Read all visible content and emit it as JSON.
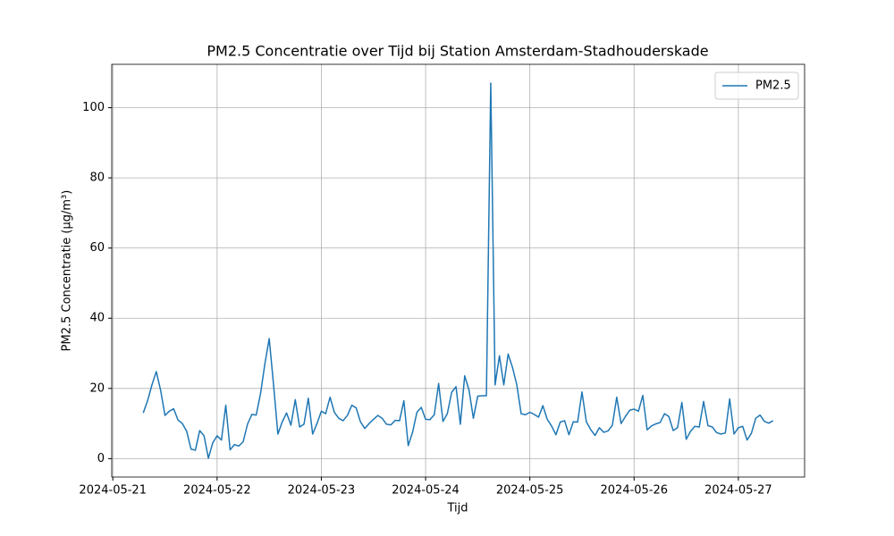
{
  "chart_data": {
    "type": "line",
    "title": "PM2.5 Concentratie over Tijd bij Station Amsterdam-Stadhouderskade",
    "x_label": "Tijd",
    "y_label": "PM2.5 Concentratie (µg/m³)",
    "x": [
      "2024-05-21 07:00",
      "2024-05-21 08:00",
      "2024-05-21 09:00",
      "2024-05-21 10:00",
      "2024-05-21 11:00",
      "2024-05-21 12:00",
      "2024-05-21 13:00",
      "2024-05-21 14:00",
      "2024-05-21 15:00",
      "2024-05-21 16:00",
      "2024-05-21 17:00",
      "2024-05-21 18:00",
      "2024-05-21 19:00",
      "2024-05-21 20:00",
      "2024-05-21 21:00",
      "2024-05-21 22:00",
      "2024-05-21 23:00",
      "2024-05-22 00:00",
      "2024-05-22 01:00",
      "2024-05-22 02:00",
      "2024-05-22 03:00",
      "2024-05-22 04:00",
      "2024-05-22 05:00",
      "2024-05-22 06:00",
      "2024-05-22 07:00",
      "2024-05-22 08:00",
      "2024-05-22 09:00",
      "2024-05-22 10:00",
      "2024-05-22 11:00",
      "2024-05-22 12:00",
      "2024-05-22 13:00",
      "2024-05-22 14:00",
      "2024-05-22 15:00",
      "2024-05-22 16:00",
      "2024-05-22 17:00",
      "2024-05-22 18:00",
      "2024-05-22 19:00",
      "2024-05-22 20:00",
      "2024-05-22 21:00",
      "2024-05-22 22:00",
      "2024-05-22 23:00",
      "2024-05-23 00:00",
      "2024-05-23 01:00",
      "2024-05-23 02:00",
      "2024-05-23 03:00",
      "2024-05-23 04:00",
      "2024-05-23 05:00",
      "2024-05-23 06:00",
      "2024-05-23 07:00",
      "2024-05-23 08:00",
      "2024-05-23 09:00",
      "2024-05-23 10:00",
      "2024-05-23 11:00",
      "2024-05-23 12:00",
      "2024-05-23 13:00",
      "2024-05-23 14:00",
      "2024-05-23 15:00",
      "2024-05-23 16:00",
      "2024-05-23 17:00",
      "2024-05-23 18:00",
      "2024-05-23 19:00",
      "2024-05-23 20:00",
      "2024-05-23 21:00",
      "2024-05-23 22:00",
      "2024-05-23 23:00",
      "2024-05-24 00:00",
      "2024-05-24 01:00",
      "2024-05-24 02:00",
      "2024-05-24 03:00",
      "2024-05-24 04:00",
      "2024-05-24 05:00",
      "2024-05-24 06:00",
      "2024-05-24 07:00",
      "2024-05-24 08:00",
      "2024-05-24 09:00",
      "2024-05-24 10:00",
      "2024-05-24 11:00",
      "2024-05-24 12:00",
      "2024-05-24 13:00",
      "2024-05-24 14:00",
      "2024-05-24 15:00",
      "2024-05-24 16:00",
      "2024-05-24 17:00",
      "2024-05-24 18:00",
      "2024-05-24 19:00",
      "2024-05-24 20:00",
      "2024-05-24 21:00",
      "2024-05-24 22:00",
      "2024-05-24 23:00",
      "2024-05-25 00:00",
      "2024-05-25 01:00",
      "2024-05-25 02:00",
      "2024-05-25 03:00",
      "2024-05-25 04:00",
      "2024-05-25 05:00",
      "2024-05-25 06:00",
      "2024-05-25 07:00",
      "2024-05-25 08:00",
      "2024-05-25 09:00",
      "2024-05-25 10:00",
      "2024-05-25 11:00",
      "2024-05-25 12:00",
      "2024-05-25 13:00",
      "2024-05-25 14:00",
      "2024-05-25 15:00",
      "2024-05-25 16:00",
      "2024-05-25 17:00",
      "2024-05-25 18:00",
      "2024-05-25 19:00",
      "2024-05-25 20:00",
      "2024-05-25 21:00",
      "2024-05-25 22:00",
      "2024-05-25 23:00",
      "2024-05-26 00:00",
      "2024-05-26 01:00",
      "2024-05-26 02:00",
      "2024-05-26 03:00",
      "2024-05-26 04:00",
      "2024-05-26 05:00",
      "2024-05-26 06:00",
      "2024-05-26 07:00",
      "2024-05-26 08:00",
      "2024-05-26 09:00",
      "2024-05-26 10:00",
      "2024-05-26 11:00",
      "2024-05-26 12:00",
      "2024-05-26 13:00",
      "2024-05-26 14:00",
      "2024-05-26 15:00",
      "2024-05-26 16:00",
      "2024-05-26 17:00",
      "2024-05-26 18:00",
      "2024-05-26 19:00",
      "2024-05-26 20:00",
      "2024-05-26 21:00",
      "2024-05-26 22:00",
      "2024-05-26 23:00",
      "2024-05-27 00:00",
      "2024-05-27 01:00",
      "2024-05-27 02:00",
      "2024-05-27 03:00",
      "2024-05-27 04:00",
      "2024-05-27 05:00",
      "2024-05-27 06:00",
      "2024-05-27 07:00",
      "2024-05-27 08:00"
    ],
    "series": [
      {
        "name": "PM2.5",
        "color": "#1f77b4",
        "values": [
          13,
          16.5,
          21,
          24.8,
          19.5,
          12.3,
          13.5,
          14.2,
          11,
          10,
          7.8,
          2.7,
          2.4,
          8,
          6.5,
          0.1,
          4.5,
          6.5,
          5.3,
          15.2,
          2.5,
          4,
          3.6,
          4.8,
          9.8,
          12.6,
          12.4,
          18.5,
          27,
          34.2,
          21,
          7,
          10.5,
          13,
          9.5,
          16.8,
          9,
          9.8,
          17.2,
          7,
          10,
          13.5,
          12.8,
          17.5,
          13.2,
          11.5,
          10.8,
          12.3,
          15.2,
          14.5,
          10.5,
          8.6,
          10,
          11.2,
          12.3,
          11.5,
          9.8,
          9.6,
          10.9,
          10.8,
          16.5,
          3.7,
          7.5,
          13.2,
          14.6,
          11.2,
          11.1,
          12.5,
          21.4,
          10.6,
          12.8,
          18.9,
          20.5,
          9.8,
          23.6,
          19.5,
          11.5,
          17.8,
          17.9,
          17.9,
          107,
          21,
          29.3,
          21,
          29.8,
          26,
          21,
          12.8,
          12.5,
          13.2,
          12.6,
          11.8,
          15.1,
          11.2,
          9.3,
          6.8,
          10.4,
          10.8,
          6.8,
          10.5,
          10.4,
          19,
          10.5,
          8.3,
          6.6,
          8.8,
          7.5,
          7.9,
          9.5,
          17.5,
          10,
          12,
          13.8,
          14.1,
          13.5,
          18,
          8.2,
          9.3,
          9.9,
          10.3,
          12.8,
          12,
          8,
          8.8,
          16,
          5.5,
          7.8,
          9.2,
          9,
          16.3,
          9.4,
          9,
          7.4,
          7,
          7.3,
          17,
          7,
          8.8,
          9.2,
          5.3,
          7.2,
          11.5,
          12.4,
          10.6,
          10.1,
          10.8
        ]
      }
    ],
    "xlim": [
      "2024-05-20 23:45",
      "2024-05-27 15:15"
    ],
    "xticks": [
      "2024-05-21",
      "2024-05-22",
      "2024-05-23",
      "2024-05-24",
      "2024-05-25",
      "2024-05-26",
      "2024-05-27"
    ],
    "ylim": [
      -5.25,
      112.35
    ],
    "yticks": [
      0,
      20,
      40,
      60,
      80,
      100
    ],
    "grid": true,
    "legend": "upper right"
  }
}
